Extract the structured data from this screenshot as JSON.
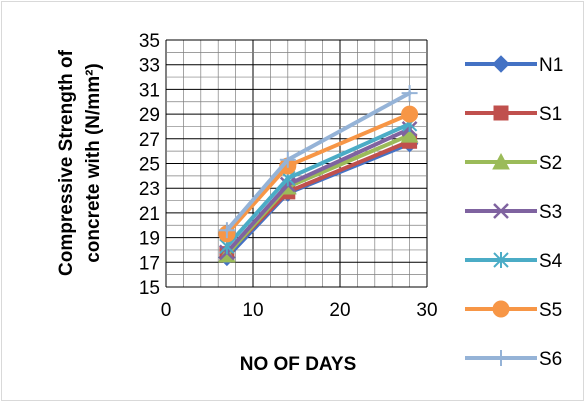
{
  "chart_data": {
    "type": "line",
    "xlabel": "NO OF DAYS",
    "ylabel_lines": [
      "Compressive Strength of",
      "concrete with (N/mm²)"
    ],
    "xlim": [
      0,
      30
    ],
    "ylim": [
      15,
      35
    ],
    "xticks": [
      "0",
      "10",
      "20",
      "30"
    ],
    "yticks": [
      "15",
      "17",
      "19",
      "21",
      "23",
      "25",
      "27",
      "29",
      "31",
      "33",
      "35"
    ],
    "grid": "vertical minor and horizontal gridlines",
    "legend_position": "right",
    "x": [
      7,
      14,
      28
    ],
    "series": [
      {
        "name": "N1",
        "values": [
          17.4,
          22.6,
          26.6
        ],
        "color": "#4472C4",
        "marker": "diamond"
      },
      {
        "name": "S1",
        "values": [
          17.7,
          22.7,
          26.8
        ],
        "color": "#C0504D",
        "marker": "square"
      },
      {
        "name": "S2",
        "values": [
          17.6,
          23.1,
          27.3
        ],
        "color": "#9BBB59",
        "marker": "triangle"
      },
      {
        "name": "S3",
        "values": [
          17.8,
          23.3,
          27.8
        ],
        "color": "#7F63A0",
        "marker": "x"
      },
      {
        "name": "S4",
        "values": [
          18.3,
          23.8,
          28.2
        ],
        "color": "#4BACC6",
        "marker": "asterisk"
      },
      {
        "name": "S5",
        "values": [
          19.3,
          24.8,
          29.0
        ],
        "color": "#F79646",
        "marker": "circle"
      },
      {
        "name": "S6",
        "values": [
          19.6,
          25.3,
          30.7
        ],
        "color": "#95B3D7",
        "marker": "plus"
      }
    ]
  }
}
